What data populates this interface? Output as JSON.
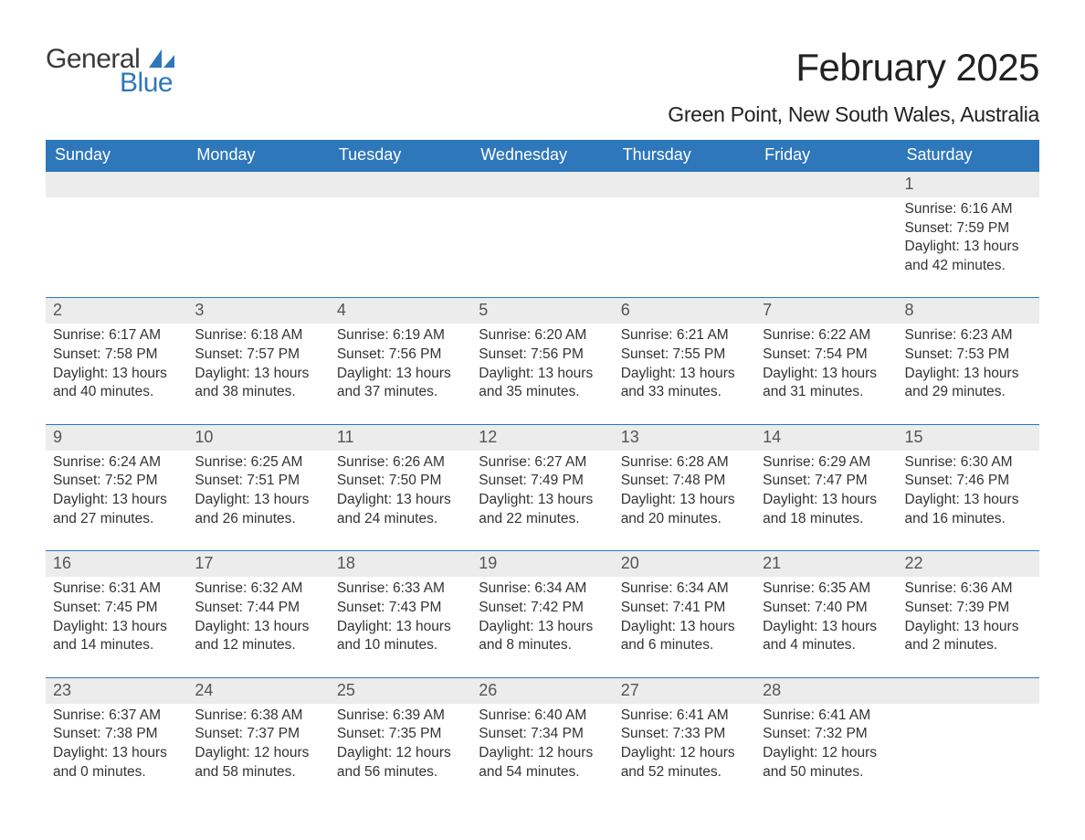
{
  "logo": {
    "general": "General",
    "blue": "Blue",
    "sail_color": "#2e77bb"
  },
  "title": "February 2025",
  "location": "Green Point, New South Wales, Australia",
  "colors": {
    "header_bg": "#2e77bb",
    "header_text": "#ffffff",
    "daynum_bg": "#ececec",
    "daynum_border_top": "#2e77bb",
    "text": "#333333",
    "daynum_text": "#555555",
    "page_bg": "#ffffff"
  },
  "weekdays": [
    "Sunday",
    "Monday",
    "Tuesday",
    "Wednesday",
    "Thursday",
    "Friday",
    "Saturday"
  ],
  "layout": {
    "first_weekday_index": 6,
    "days_in_month": 28,
    "weeks": 5
  },
  "days": {
    "1": {
      "sunrise": "6:16 AM",
      "sunset": "7:59 PM",
      "daylight": "13 hours and 42 minutes."
    },
    "2": {
      "sunrise": "6:17 AM",
      "sunset": "7:58 PM",
      "daylight": "13 hours and 40 minutes."
    },
    "3": {
      "sunrise": "6:18 AM",
      "sunset": "7:57 PM",
      "daylight": "13 hours and 38 minutes."
    },
    "4": {
      "sunrise": "6:19 AM",
      "sunset": "7:56 PM",
      "daylight": "13 hours and 37 minutes."
    },
    "5": {
      "sunrise": "6:20 AM",
      "sunset": "7:56 PM",
      "daylight": "13 hours and 35 minutes."
    },
    "6": {
      "sunrise": "6:21 AM",
      "sunset": "7:55 PM",
      "daylight": "13 hours and 33 minutes."
    },
    "7": {
      "sunrise": "6:22 AM",
      "sunset": "7:54 PM",
      "daylight": "13 hours and 31 minutes."
    },
    "8": {
      "sunrise": "6:23 AM",
      "sunset": "7:53 PM",
      "daylight": "13 hours and 29 minutes."
    },
    "9": {
      "sunrise": "6:24 AM",
      "sunset": "7:52 PM",
      "daylight": "13 hours and 27 minutes."
    },
    "10": {
      "sunrise": "6:25 AM",
      "sunset": "7:51 PM",
      "daylight": "13 hours and 26 minutes."
    },
    "11": {
      "sunrise": "6:26 AM",
      "sunset": "7:50 PM",
      "daylight": "13 hours and 24 minutes."
    },
    "12": {
      "sunrise": "6:27 AM",
      "sunset": "7:49 PM",
      "daylight": "13 hours and 22 minutes."
    },
    "13": {
      "sunrise": "6:28 AM",
      "sunset": "7:48 PM",
      "daylight": "13 hours and 20 minutes."
    },
    "14": {
      "sunrise": "6:29 AM",
      "sunset": "7:47 PM",
      "daylight": "13 hours and 18 minutes."
    },
    "15": {
      "sunrise": "6:30 AM",
      "sunset": "7:46 PM",
      "daylight": "13 hours and 16 minutes."
    },
    "16": {
      "sunrise": "6:31 AM",
      "sunset": "7:45 PM",
      "daylight": "13 hours and 14 minutes."
    },
    "17": {
      "sunrise": "6:32 AM",
      "sunset": "7:44 PM",
      "daylight": "13 hours and 12 minutes."
    },
    "18": {
      "sunrise": "6:33 AM",
      "sunset": "7:43 PM",
      "daylight": "13 hours and 10 minutes."
    },
    "19": {
      "sunrise": "6:34 AM",
      "sunset": "7:42 PM",
      "daylight": "13 hours and 8 minutes."
    },
    "20": {
      "sunrise": "6:34 AM",
      "sunset": "7:41 PM",
      "daylight": "13 hours and 6 minutes."
    },
    "21": {
      "sunrise": "6:35 AM",
      "sunset": "7:40 PM",
      "daylight": "13 hours and 4 minutes."
    },
    "22": {
      "sunrise": "6:36 AM",
      "sunset": "7:39 PM",
      "daylight": "13 hours and 2 minutes."
    },
    "23": {
      "sunrise": "6:37 AM",
      "sunset": "7:38 PM",
      "daylight": "13 hours and 0 minutes."
    },
    "24": {
      "sunrise": "6:38 AM",
      "sunset": "7:37 PM",
      "daylight": "12 hours and 58 minutes."
    },
    "25": {
      "sunrise": "6:39 AM",
      "sunset": "7:35 PM",
      "daylight": "12 hours and 56 minutes."
    },
    "26": {
      "sunrise": "6:40 AM",
      "sunset": "7:34 PM",
      "daylight": "12 hours and 54 minutes."
    },
    "27": {
      "sunrise": "6:41 AM",
      "sunset": "7:33 PM",
      "daylight": "12 hours and 52 minutes."
    },
    "28": {
      "sunrise": "6:41 AM",
      "sunset": "7:32 PM",
      "daylight": "12 hours and 50 minutes."
    }
  },
  "labels": {
    "sunrise": "Sunrise: ",
    "sunset": "Sunset: ",
    "daylight": "Daylight: "
  },
  "typography": {
    "title_fontsize": 42,
    "location_fontsize": 23,
    "weekday_fontsize": 18,
    "daynum_fontsize": 18,
    "body_fontsize": 15.5,
    "logo_fontsize": 30
  }
}
